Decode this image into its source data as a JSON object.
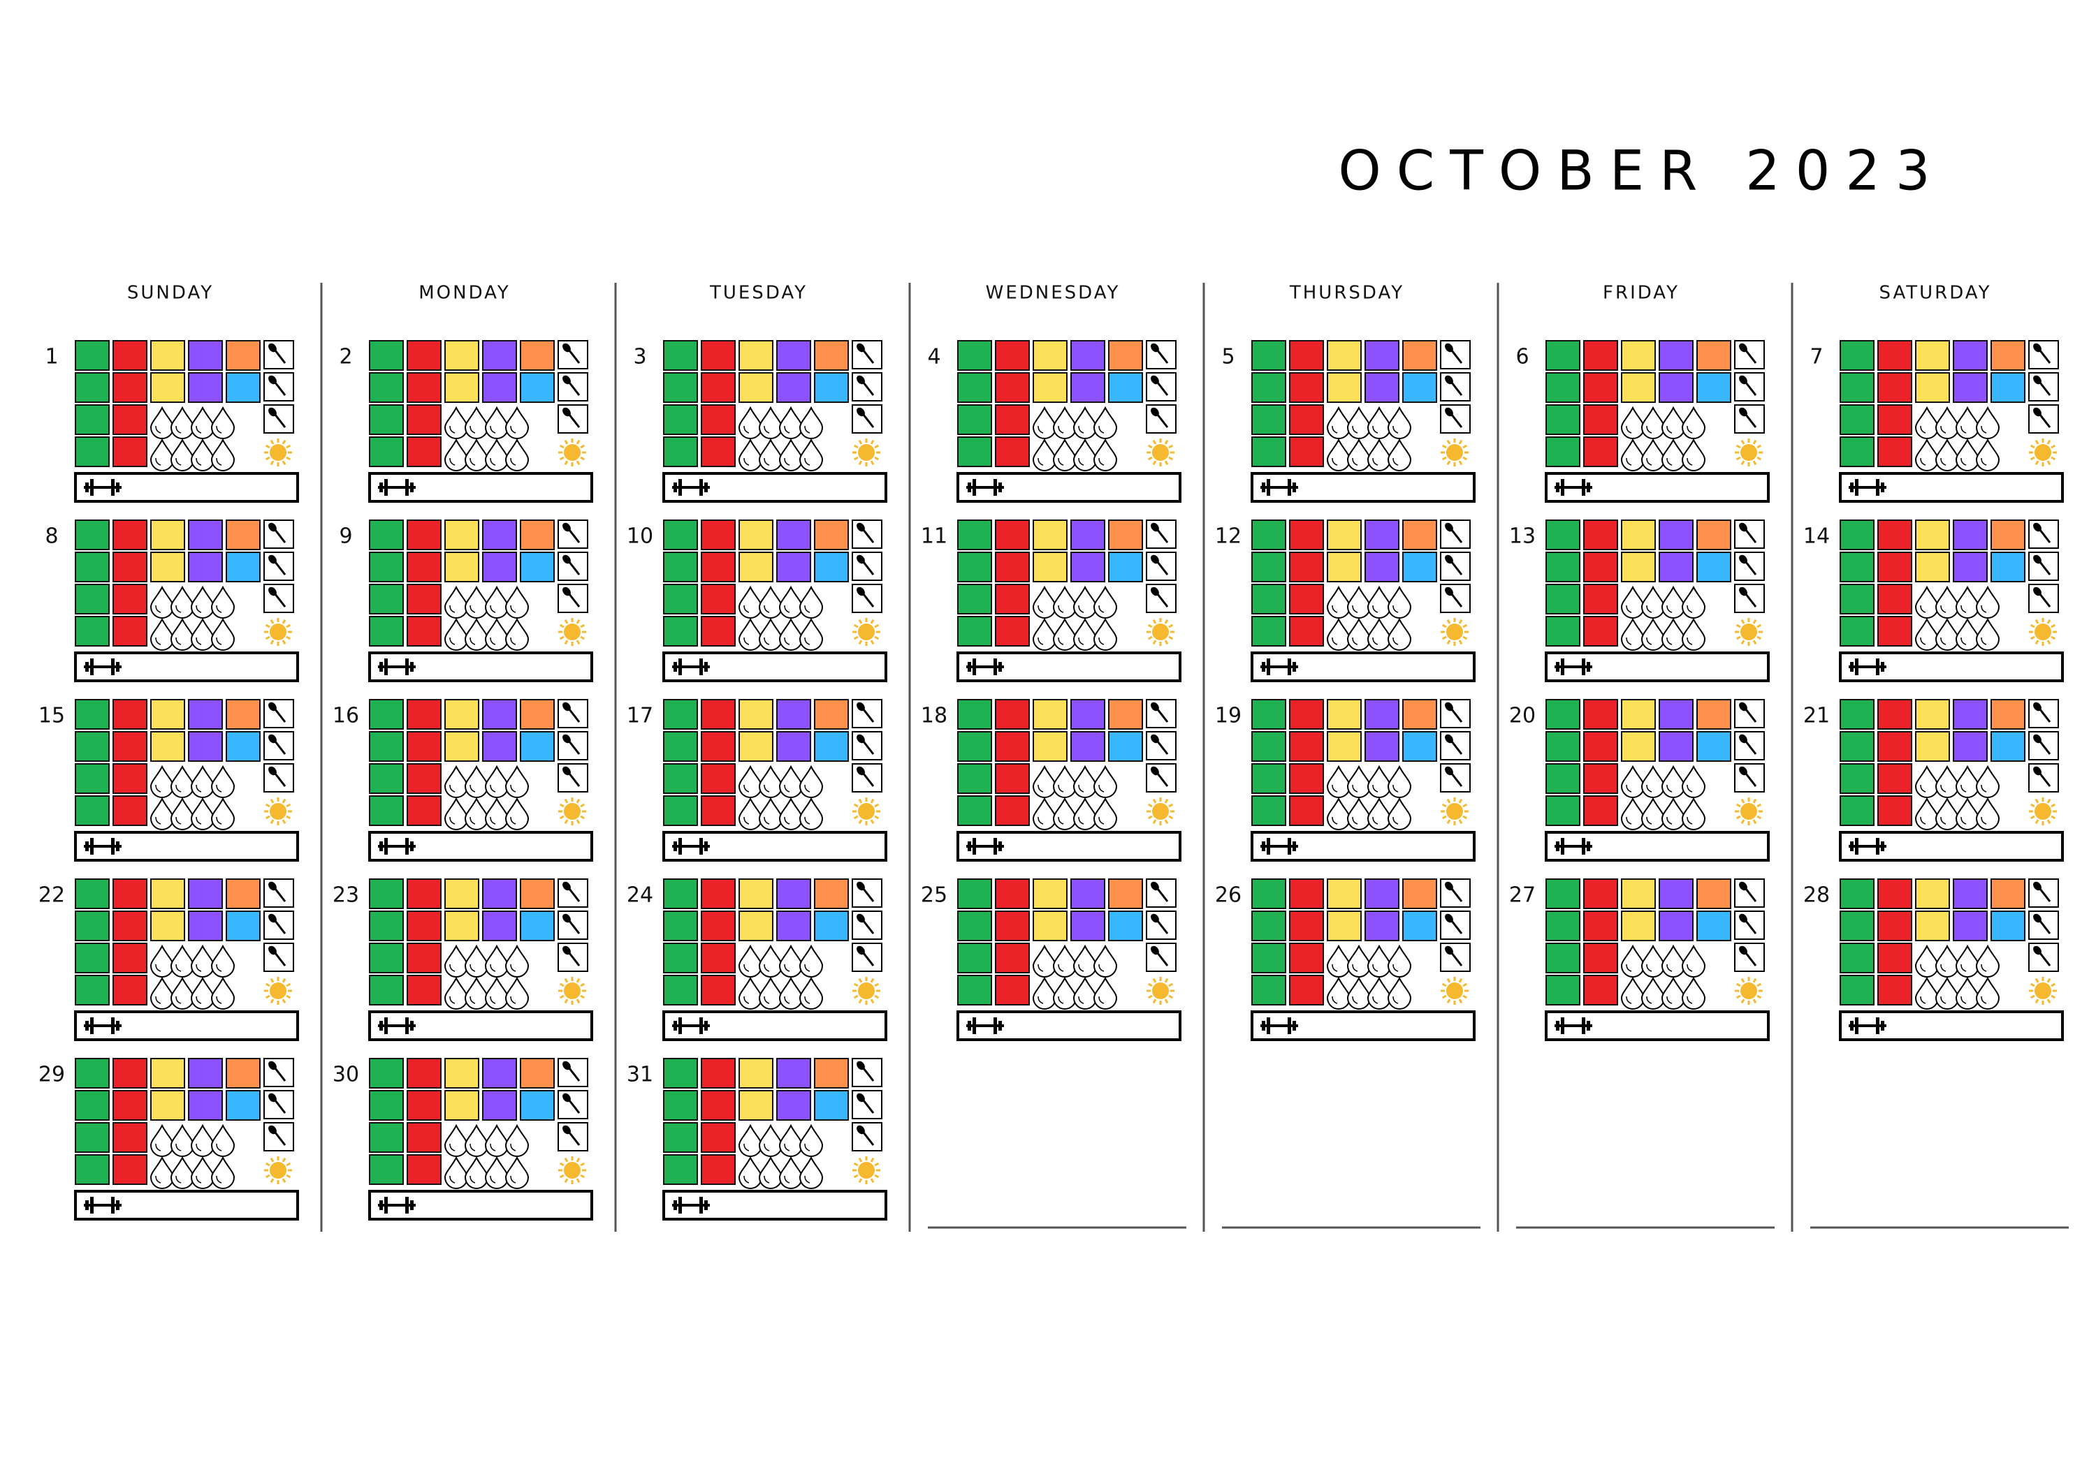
{
  "header": {
    "title": "OCTOBER 2023"
  },
  "weekdays": [
    "SUNDAY",
    "MONDAY",
    "TUESDAY",
    "WEDNESDAY",
    "THURSDAY",
    "FRIDAY",
    "SATURDAY"
  ],
  "days": [
    1,
    2,
    3,
    4,
    5,
    6,
    7,
    8,
    9,
    10,
    11,
    12,
    13,
    14,
    15,
    16,
    17,
    18,
    19,
    20,
    21,
    22,
    23,
    24,
    25,
    26,
    27,
    28,
    29,
    30,
    31
  ]
}
